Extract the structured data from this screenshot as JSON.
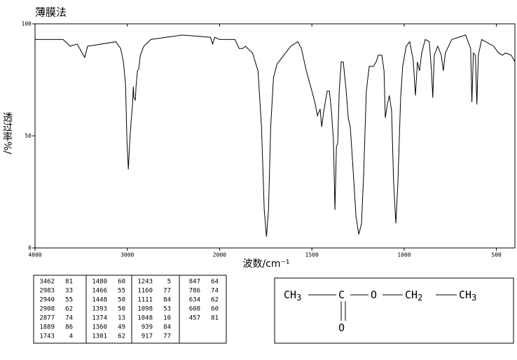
{
  "chart_data": {
    "type": "line",
    "title": "薄膜法",
    "xlabel": "波数/cm⁻¹",
    "ylabel": "透过率%/",
    "xlim": [
      4000,
      400
    ],
    "xscale_break": 2000,
    "xticks": [
      4000,
      3000,
      2000,
      1500,
      1000,
      500
    ],
    "ylim": [
      0,
      100
    ],
    "yticks": [
      0,
      50,
      100
    ],
    "color": "#000000",
    "x": [
      4000,
      3696,
      3620,
      3544,
      3462,
      3430,
      3125,
      3072,
      3042,
      3019,
      3004,
      2989,
      2973,
      2958,
      2943,
      2935,
      2928,
      2913,
      2905,
      2890,
      2875,
      2859,
      2821,
      2745,
      2403,
      2099,
      2076,
      2053,
      2000,
      1917,
      1894,
      1875,
      1860,
      1822,
      1792,
      1773,
      1758,
      1746,
      1735,
      1723,
      1708,
      1689,
      1652,
      1614,
      1576,
      1557,
      1530,
      1500,
      1481,
      1470,
      1455,
      1447,
      1436,
      1417,
      1405,
      1394,
      1383,
      1375,
      1367,
      1360,
      1352,
      1341,
      1330,
      1314,
      1303,
      1292,
      1280,
      1261,
      1246,
      1231,
      1220,
      1205,
      1189,
      1167,
      1152,
      1140,
      1121,
      1109,
      1102,
      1091,
      1080,
      1068,
      1057,
      1045,
      1034,
      1019,
      1008,
      989,
      970,
      951,
      939,
      928,
      917,
      905,
      886,
      864,
      852,
      845,
      837,
      818,
      799,
      788,
      777,
      742,
      667,
      640,
      633,
      625,
      614,
      606,
      598,
      580,
      515,
      489,
      466,
      451,
      420,
      400
    ],
    "values": [
      93,
      93,
      90,
      91,
      85,
      90,
      92,
      89,
      83,
      73,
      48,
      35,
      48,
      57,
      64,
      72,
      67,
      66,
      72,
      79,
      80,
      86,
      90,
      93,
      95,
      94,
      91,
      94,
      93,
      93,
      89,
      89,
      90,
      87,
      79,
      54,
      17,
      5,
      17,
      54,
      76,
      82,
      86,
      90,
      92,
      89,
      79,
      70,
      64,
      59,
      62,
      54,
      61,
      70,
      70,
      61,
      48,
      17,
      45,
      47,
      70,
      83,
      83,
      70,
      58,
      54,
      39,
      14,
      6,
      11,
      32,
      70,
      81,
      81,
      83,
      86,
      86,
      79,
      58,
      64,
      68,
      61,
      29,
      11,
      29,
      67,
      81,
      90,
      92,
      84,
      68,
      83,
      79,
      87,
      93,
      92,
      79,
      67,
      86,
      90,
      86,
      79,
      87,
      93,
      95,
      89,
      65,
      87,
      86,
      64,
      86,
      93,
      90,
      87,
      86,
      87,
      86,
      83
    ]
  },
  "peak_table": [
    [
      [
        3462,
        81
      ],
      [
        2983,
        33
      ],
      [
        2940,
        55
      ],
      [
        2908,
        62
      ],
      [
        2877,
        74
      ],
      [
        1889,
        86
      ],
      [
        1743,
        4
      ]
    ],
    [
      [
        1480,
        60
      ],
      [
        1466,
        55
      ],
      [
        1448,
        50
      ],
      [
        1393,
        50
      ],
      [
        1374,
        13
      ],
      [
        1360,
        49
      ],
      [
        1301,
        62
      ]
    ],
    [
      [
        1243,
        5
      ],
      [
        1160,
        77
      ],
      [
        1111,
        84
      ],
      [
        1098,
        53
      ],
      [
        1048,
        10
      ],
      [
        939,
        84
      ],
      [
        917,
        77
      ]
    ],
    [
      [
        847,
        64
      ],
      [
        786,
        74
      ],
      [
        634,
        62
      ],
      [
        608,
        60
      ],
      [
        457,
        81
      ]
    ]
  ],
  "structure": {
    "atoms": [
      {
        "text": "CH",
        "sub": "3"
      },
      {
        "text": "C"
      },
      {
        "text": "O"
      },
      {
        "text": "CH",
        "sub": "2"
      },
      {
        "text": "CH",
        "sub": "3"
      },
      {
        "text": "O"
      }
    ]
  }
}
